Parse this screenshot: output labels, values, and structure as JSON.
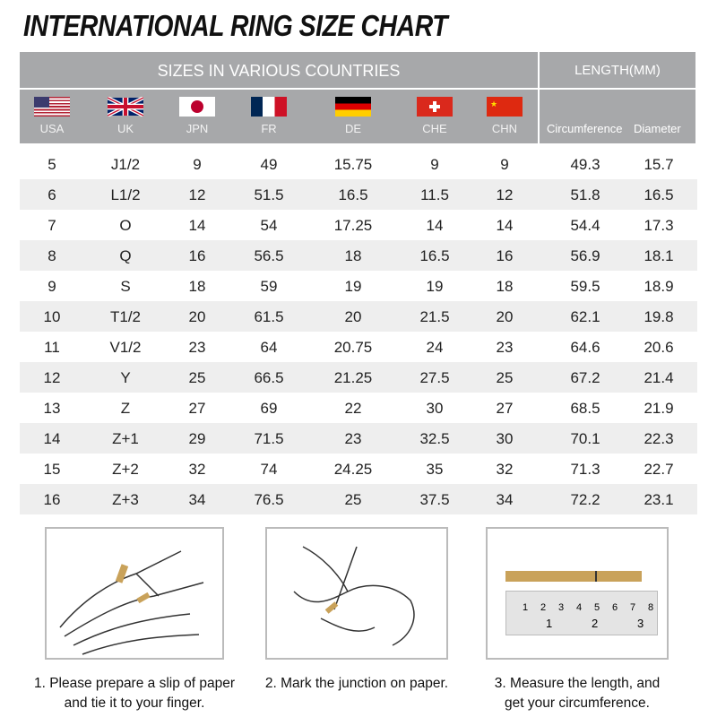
{
  "title": "INTERNATIONAL RING SIZE CHART",
  "header": {
    "sizes": "SIZES IN VARIOUS COUNTRIES",
    "length": "LENGTH(MM)",
    "countries": [
      {
        "label": "USA",
        "flag": "us-flag"
      },
      {
        "label": "UK",
        "flag": "uk-flag"
      },
      {
        "label": "JPN",
        "flag": "japan-flag"
      },
      {
        "label": "FR",
        "flag": "france-flag"
      },
      {
        "label": "DE",
        "flag": "germany-flag"
      },
      {
        "label": "CHE",
        "flag": "switzerland-flag"
      },
      {
        "label": "CHN",
        "flag": "china-flag"
      }
    ],
    "circumference": "Circumference",
    "diameter": "Diameter"
  },
  "rows": [
    [
      "5",
      "J1/2",
      "9",
      "49",
      "15.75",
      "9",
      "9",
      "49.3",
      "15.7"
    ],
    [
      "6",
      "L1/2",
      "12",
      "51.5",
      "16.5",
      "11.5",
      "12",
      "51.8",
      "16.5"
    ],
    [
      "7",
      "O",
      "14",
      "54",
      "17.25",
      "14",
      "14",
      "54.4",
      "17.3"
    ],
    [
      "8",
      "Q",
      "16",
      "56.5",
      "18",
      "16.5",
      "16",
      "56.9",
      "18.1"
    ],
    [
      "9",
      "S",
      "18",
      "59",
      "19",
      "19",
      "18",
      "59.5",
      "18.9"
    ],
    [
      "10",
      "T1/2",
      "20",
      "61.5",
      "20",
      "21.5",
      "20",
      "62.1",
      "19.8"
    ],
    [
      "11",
      "V1/2",
      "23",
      "64",
      "20.75",
      "24",
      "23",
      "64.6",
      "20.6"
    ],
    [
      "12",
      "Y",
      "25",
      "66.5",
      "21.25",
      "27.5",
      "25",
      "67.2",
      "21.4"
    ],
    [
      "13",
      "Z",
      "27",
      "69",
      "22",
      "30",
      "27",
      "68.5",
      "21.9"
    ],
    [
      "14",
      "Z+1",
      "29",
      "71.5",
      "23",
      "32.5",
      "30",
      "70.1",
      "22.3"
    ],
    [
      "15",
      "Z+2",
      "32",
      "74",
      "24.25",
      "35",
      "32",
      "71.3",
      "22.7"
    ],
    [
      "16",
      "Z+3",
      "34",
      "76.5",
      "25",
      "37.5",
      "34",
      "72.2",
      "23.1"
    ]
  ],
  "steps": [
    {
      "line1": "1. Please prepare a slip of paper",
      "line2": "and tie it to your finger."
    },
    {
      "line1": "2. Mark the junction on paper.",
      "line2": ""
    },
    {
      "line1": "3. Measure the length, and",
      "line2": "get your circumference."
    }
  ],
  "ruler": {
    "top": [
      "1",
      "2",
      "3",
      "4",
      "5",
      "6",
      "7",
      "8"
    ],
    "bottom": [
      "1",
      "2",
      "3"
    ]
  },
  "colors": {
    "header": "#a7a8aa",
    "alt_row": "#eeeeee",
    "paper": "#c9a25a"
  }
}
